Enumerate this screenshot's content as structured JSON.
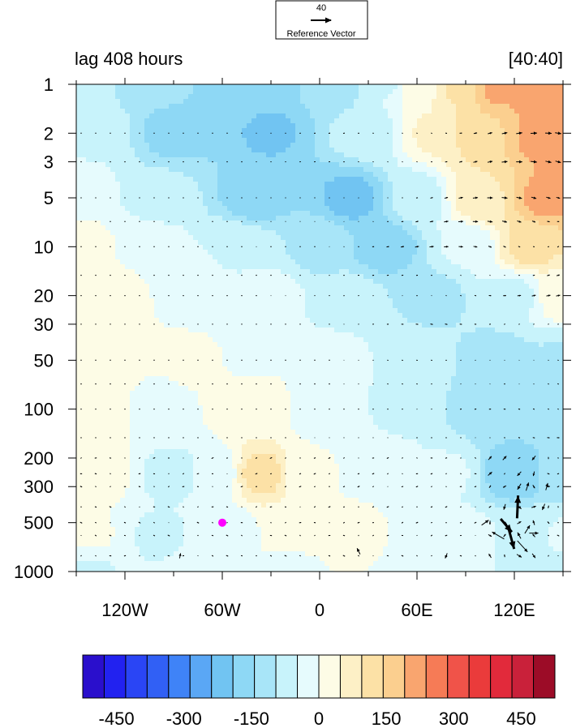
{
  "chart_data": {
    "type": "contour",
    "title_left": "lag 408 hours",
    "title_right": "[40:40]",
    "x_axis": {
      "range": [
        -150,
        150
      ],
      "ticks": [
        {
          "value": -120,
          "label": "120W"
        },
        {
          "value": -60,
          "label": "60W"
        },
        {
          "value": 0,
          "label": "0"
        },
        {
          "value": 60,
          "label": "60E"
        },
        {
          "value": 120,
          "label": "120E"
        }
      ]
    },
    "y_axis": {
      "scale": "log",
      "reversed": true,
      "range": [
        1,
        1000
      ],
      "ticks": [
        {
          "value": 1,
          "label": "1"
        },
        {
          "value": 2,
          "label": "2"
        },
        {
          "value": 3,
          "label": "3"
        },
        {
          "value": 5,
          "label": "5"
        },
        {
          "value": 10,
          "label": "10"
        },
        {
          "value": 20,
          "label": "20"
        },
        {
          "value": 30,
          "label": "30"
        },
        {
          "value": 50,
          "label": "50"
        },
        {
          "value": 100,
          "label": "100"
        },
        {
          "value": 200,
          "label": "200"
        },
        {
          "value": 300,
          "label": "300"
        },
        {
          "value": 500,
          "label": "500"
        },
        {
          "value": 1000,
          "label": "1000"
        }
      ]
    },
    "colorbar": {
      "levels": [
        -525,
        -475,
        -425,
        -375,
        -325,
        -275,
        -225,
        -175,
        -125,
        -75,
        -25,
        25,
        75,
        125,
        175,
        225,
        275,
        325,
        375,
        425,
        475,
        525
      ],
      "colors": [
        "#2a0fcc",
        "#2222f0",
        "#2a45f5",
        "#3160f5",
        "#3f83f7",
        "#5aa7f5",
        "#71c4f2",
        "#8ed8f5",
        "#a8e5f8",
        "#c8f3fb",
        "#e6fbfd",
        "#fdfce6",
        "#fdf0c6",
        "#fce1a6",
        "#fbcf8f",
        "#f9a56f",
        "#f67b56",
        "#f05349",
        "#ea3b3b",
        "#e22a3b",
        "#c9213a",
        "#9c0c27"
      ],
      "labels": [
        {
          "value": -450,
          "label": "-450"
        },
        {
          "value": -300,
          "label": "-300"
        },
        {
          "value": -150,
          "label": "-150"
        },
        {
          "value": 0,
          "label": "0"
        },
        {
          "value": 150,
          "label": "150"
        },
        {
          "value": 300,
          "label": "300"
        },
        {
          "value": 450,
          "label": "450"
        }
      ]
    },
    "reference_vector": {
      "magnitude": "40",
      "label": "Reference Vector"
    },
    "marker": {
      "lon": -60,
      "p": 500,
      "color": "#ff00ff"
    },
    "field_anchors": [
      {
        "lon": -150,
        "p": 1,
        "v": -50
      },
      {
        "lon": -100,
        "p": 1,
        "v": -120
      },
      {
        "lon": -40,
        "p": 1,
        "v": -160
      },
      {
        "lon": 10,
        "p": 1,
        "v": -110
      },
      {
        "lon": 40,
        "p": 1,
        "v": -30
      },
      {
        "lon": 60,
        "p": 1,
        "v": 50
      },
      {
        "lon": 85,
        "p": 1,
        "v": 130
      },
      {
        "lon": 110,
        "p": 1,
        "v": 240
      },
      {
        "lon": 140,
        "p": 1,
        "v": 260
      },
      {
        "lon": -140,
        "p": 2,
        "v": -30
      },
      {
        "lon": -90,
        "p": 2,
        "v": -140
      },
      {
        "lon": -30,
        "p": 2,
        "v": -180
      },
      {
        "lon": 30,
        "p": 2,
        "v": -50
      },
      {
        "lon": 70,
        "p": 2,
        "v": 80
      },
      {
        "lon": 100,
        "p": 2,
        "v": 170
      },
      {
        "lon": 140,
        "p": 2,
        "v": 260
      },
      {
        "lon": -150,
        "p": 5,
        "v": 10
      },
      {
        "lon": -100,
        "p": 5,
        "v": -50
      },
      {
        "lon": -40,
        "p": 5,
        "v": -150
      },
      {
        "lon": 20,
        "p": 5,
        "v": -190
      },
      {
        "lon": 60,
        "p": 5,
        "v": -50
      },
      {
        "lon": 100,
        "p": 5,
        "v": 120
      },
      {
        "lon": 140,
        "p": 5,
        "v": 240
      },
      {
        "lon": -150,
        "p": 10,
        "v": 50
      },
      {
        "lon": -110,
        "p": 10,
        "v": 20
      },
      {
        "lon": -50,
        "p": 10,
        "v": -30
      },
      {
        "lon": 0,
        "p": 10,
        "v": -90
      },
      {
        "lon": 40,
        "p": 10,
        "v": -160
      },
      {
        "lon": 90,
        "p": 10,
        "v": -20
      },
      {
        "lon": 130,
        "p": 10,
        "v": 140
      },
      {
        "lon": -140,
        "p": 20,
        "v": 70
      },
      {
        "lon": -80,
        "p": 20,
        "v": 20
      },
      {
        "lon": -30,
        "p": 20,
        "v": -10
      },
      {
        "lon": 20,
        "p": 20,
        "v": -60
      },
      {
        "lon": 70,
        "p": 20,
        "v": -90
      },
      {
        "lon": 120,
        "p": 20,
        "v": -40
      },
      {
        "lon": 150,
        "p": 20,
        "v": 60
      },
      {
        "lon": -140,
        "p": 50,
        "v": 60
      },
      {
        "lon": -80,
        "p": 50,
        "v": 30
      },
      {
        "lon": -40,
        "p": 50,
        "v": 20
      },
      {
        "lon": 10,
        "p": 50,
        "v": -10
      },
      {
        "lon": 60,
        "p": 50,
        "v": -60
      },
      {
        "lon": 110,
        "p": 50,
        "v": -100
      },
      {
        "lon": 150,
        "p": 50,
        "v": -80
      },
      {
        "lon": -140,
        "p": 100,
        "v": 60
      },
      {
        "lon": -100,
        "p": 100,
        "v": 10
      },
      {
        "lon": -40,
        "p": 100,
        "v": 70
      },
      {
        "lon": 0,
        "p": 100,
        "v": -5
      },
      {
        "lon": 50,
        "p": 100,
        "v": -30
      },
      {
        "lon": 100,
        "p": 100,
        "v": -100
      },
      {
        "lon": 150,
        "p": 100,
        "v": -80
      },
      {
        "lon": -140,
        "p": 250,
        "v": 60
      },
      {
        "lon": -90,
        "p": 250,
        "v": -40
      },
      {
        "lon": -65,
        "p": 250,
        "v": -10
      },
      {
        "lon": -35,
        "p": 250,
        "v": 150
      },
      {
        "lon": -10,
        "p": 250,
        "v": 30
      },
      {
        "lon": 30,
        "p": 250,
        "v": 20
      },
      {
        "lon": 80,
        "p": 250,
        "v": -20
      },
      {
        "lon": 120,
        "p": 250,
        "v": -170
      },
      {
        "lon": 150,
        "p": 250,
        "v": -90
      },
      {
        "lon": -140,
        "p": 600,
        "v": 30
      },
      {
        "lon": -100,
        "p": 600,
        "v": -30
      },
      {
        "lon": -60,
        "p": 600,
        "v": -20
      },
      {
        "lon": -20,
        "p": 600,
        "v": 40
      },
      {
        "lon": 20,
        "p": 600,
        "v": 40
      },
      {
        "lon": 60,
        "p": 600,
        "v": 20
      },
      {
        "lon": 90,
        "p": 600,
        "v": -10
      },
      {
        "lon": 130,
        "p": 600,
        "v": -40
      },
      {
        "lon": 150,
        "p": 600,
        "v": -20
      },
      {
        "lon": -140,
        "p": 1000,
        "v": -30
      },
      {
        "lon": -80,
        "p": 1000,
        "v": -20
      },
      {
        "lon": -20,
        "p": 1000,
        "v": 10
      },
      {
        "lon": 60,
        "p": 1000,
        "v": 10
      },
      {
        "lon": 140,
        "p": 1000,
        "v": -40
      }
    ],
    "vector_grid": {
      "lon": [
        -147,
        -138,
        -129,
        -120,
        -111,
        -102,
        -93,
        -84,
        -75,
        -66,
        -57,
        -48,
        -39,
        -30,
        -21,
        -12,
        -3,
        6,
        15,
        24,
        33,
        42,
        51,
        60,
        69,
        78,
        87,
        96,
        105,
        114,
        123,
        132,
        141,
        147
      ],
      "p": [
        2,
        3,
        5,
        7,
        10,
        15,
        20,
        30,
        50,
        70,
        100,
        150,
        200,
        250,
        300,
        400,
        500,
        600,
        800
      ]
    },
    "vectors_large": [
      {
        "lon": 110,
        "p": 600,
        "u": -24,
        "v": 14
      },
      {
        "lon": 115,
        "p": 520,
        "u": 22,
        "v": -26
      },
      {
        "lon": 118,
        "p": 620,
        "u": 12,
        "v": -44
      },
      {
        "lon": 122,
        "p": 400,
        "u": 2,
        "v": 45
      },
      {
        "lon": 125,
        "p": 700,
        "u": 20,
        "v": -22
      },
      {
        "lon": 128,
        "p": 550,
        "u": 10,
        "v": 16
      },
      {
        "lon": 132,
        "p": 580,
        "u": 18,
        "v": 0
      },
      {
        "lon": 102,
        "p": 500,
        "u": 14,
        "v": 10
      },
      {
        "lon": 128,
        "p": 300,
        "u": 5,
        "v": 16
      },
      {
        "lon": 140,
        "p": 300,
        "u": 4,
        "v": 14
      },
      {
        "lon": 138,
        "p": 400,
        "u": -5,
        "v": -12
      },
      {
        "lon": -86,
        "p": 800,
        "u": 2,
        "v": 10
      },
      {
        "lon": 24,
        "p": 750,
        "u": -6,
        "v": 12
      },
      {
        "lon": 78,
        "p": 800,
        "u": -4,
        "v": -10
      }
    ]
  }
}
